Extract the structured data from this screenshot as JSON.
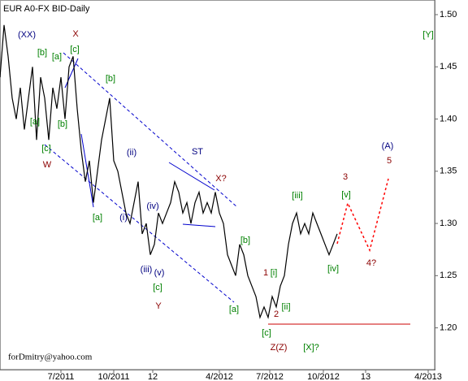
{
  "chart_data": {
    "type": "line",
    "title": "EUR A0-FX BID-Daily",
    "series": [
      {
        "name": "EUR A0-FX BID",
        "color": "#000000",
        "values": [
          1.44,
          1.49,
          1.46,
          1.42,
          1.4,
          1.43,
          1.39,
          1.42,
          1.45,
          1.38,
          1.44,
          1.42,
          1.38,
          1.43,
          1.41,
          1.44,
          1.4,
          1.45,
          1.46,
          1.41,
          1.37,
          1.34,
          1.36,
          1.32,
          1.35,
          1.38,
          1.4,
          1.42,
          1.36,
          1.35,
          1.33,
          1.31,
          1.3,
          1.32,
          1.34,
          1.29,
          1.3,
          1.27,
          1.28,
          1.31,
          1.3,
          1.31,
          1.32,
          1.34,
          1.33,
          1.31,
          1.32,
          1.3,
          1.32,
          1.33,
          1.31,
          1.32,
          1.31,
          1.33,
          1.31,
          1.3,
          1.27,
          1.26,
          1.25,
          1.28,
          1.27,
          1.25,
          1.24,
          1.23,
          1.21,
          1.22,
          1.21,
          1.23,
          1.22,
          1.24,
          1.25,
          1.28,
          1.3,
          1.31,
          1.29,
          1.3,
          1.29,
          1.31,
          1.3,
          1.29,
          1.28,
          1.27,
          1.28,
          1.29
        ]
      }
    ],
    "xlim": [
      0,
      107
    ],
    "xticks": [
      {
        "value": 15,
        "label": "7/2011"
      },
      {
        "value": 28,
        "label": "10/2011"
      },
      {
        "value": 37.6,
        "label": "12"
      },
      {
        "value": 54,
        "label": "4/2012"
      },
      {
        "value": 66.4,
        "label": "7/2012"
      },
      {
        "value": 79.6,
        "label": "10/2012"
      },
      {
        "value": 90,
        "label": "13"
      },
      {
        "value": 105.4,
        "label": "4/2013"
      }
    ],
    "ylim": [
      1.16,
      1.514
    ],
    "yticks": [
      {
        "value": 1.5,
        "label": "1.50"
      },
      1.45,
      {
        "value": 1.4,
        "label": "1.40"
      },
      1.35,
      {
        "value": 1.3,
        "label": "1.30"
      },
      1.25,
      {
        "value": 1.2,
        "label": "1.20"
      }
    ],
    "annotations": [
      {
        "text": "(XX)",
        "color": "#000080"
      },
      {
        "text": "X",
        "color": "#8b0000"
      },
      {
        "text": "[b]",
        "color": "#008000"
      },
      {
        "text": "[a]",
        "color": "#008000"
      },
      {
        "text": "[c]",
        "color": "#008000"
      },
      {
        "text": "[b]",
        "color": "#008000"
      },
      {
        "text": "[a]",
        "color": "#008000"
      },
      {
        "text": "[b]",
        "color": "#008000"
      },
      {
        "text": "[c]",
        "color": "#008000"
      },
      {
        "text": "W",
        "color": "#8b0000"
      },
      {
        "text": "[a]",
        "color": "#008000"
      },
      {
        "text": "(i)",
        "color": "#000080"
      },
      {
        "text": "(ii)",
        "color": "#000080"
      },
      {
        "text": "ST",
        "color": "#000080"
      },
      {
        "text": "X?",
        "color": "#8b0000"
      },
      {
        "text": "(iv)",
        "color": "#000080"
      },
      {
        "text": "(iii)",
        "color": "#000080"
      },
      {
        "text": "(v)",
        "color": "#000080"
      },
      {
        "text": "[c]",
        "color": "#008000"
      },
      {
        "text": "Y",
        "color": "#8b0000"
      },
      {
        "text": "[b]",
        "color": "#008000"
      },
      {
        "text": "[a]",
        "color": "#008000"
      },
      {
        "text": "1",
        "color": "#8b0000"
      },
      {
        "text": "[i]",
        "color": "#008000"
      },
      {
        "text": "2",
        "color": "#8b0000"
      },
      {
        "text": "[ii]",
        "color": "#008000"
      },
      {
        "text": "[iii]",
        "color": "#008000"
      },
      {
        "text": "[iv]",
        "color": "#008000"
      },
      {
        "text": "[v]",
        "color": "#008000"
      },
      {
        "text": "3",
        "color": "#8b0000"
      },
      {
        "text": "4?",
        "color": "#8b0000"
      },
      {
        "text": "5",
        "color": "#8b0000"
      },
      {
        "text": "(A)",
        "color": "#000080"
      },
      {
        "text": "[c]",
        "color": "#008000"
      },
      {
        "text": "Z(Z)",
        "color": "#8b0000"
      },
      {
        "text": "[X]?",
        "color": "#008000"
      },
      {
        "text": "[Y]",
        "color": "#008000"
      },
      {
        "text": "forDmitry@yahoo.com",
        "color": "#000000"
      }
    ]
  }
}
